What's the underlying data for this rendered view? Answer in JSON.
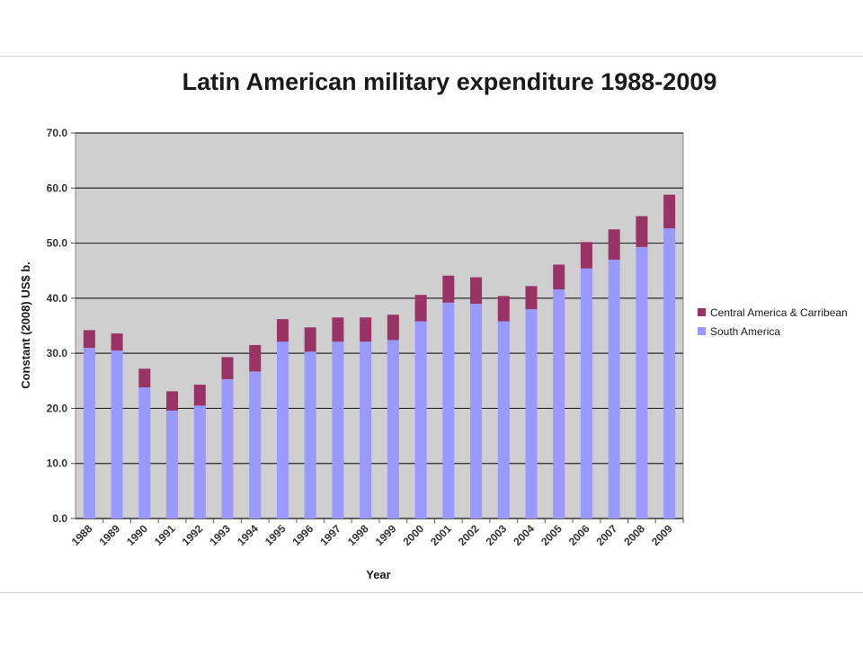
{
  "chart_data": {
    "type": "bar",
    "stacked": true,
    "title": "Latin American military expenditure 1988-2009",
    "xlabel": "Year",
    "ylabel": "Constant (2008) US$ b.",
    "ylim": [
      0,
      70
    ],
    "yticks": [
      "0.0",
      "10.0",
      "20.0",
      "30.0",
      "40.0",
      "50.0",
      "60.0",
      "70.0"
    ],
    "grid": true,
    "legend_position": "right",
    "categories": [
      "1988",
      "1989",
      "1990",
      "1991",
      "1992",
      "1993",
      "1994",
      "1995",
      "1996",
      "1997",
      "1998",
      "1999",
      "2000",
      "2001",
      "2002",
      "2003",
      "2004",
      "2005",
      "2006",
      "2007",
      "2008",
      "2009"
    ],
    "series": [
      {
        "name": "South America",
        "color": "#9999ff",
        "values": [
          31.0,
          30.5,
          23.8,
          19.6,
          20.5,
          25.3,
          26.7,
          32.1,
          30.3,
          32.1,
          32.1,
          32.4,
          35.8,
          39.2,
          39.0,
          35.8,
          38.0,
          41.6,
          45.4,
          47.0,
          49.3,
          52.7
        ]
      },
      {
        "name": "Central America & Carribean",
        "color": "#993366",
        "values": [
          3.2,
          3.1,
          3.4,
          3.5,
          3.8,
          4.0,
          4.8,
          4.1,
          4.4,
          4.4,
          4.4,
          4.6,
          4.8,
          4.9,
          4.8,
          4.6,
          4.2,
          4.5,
          4.8,
          5.5,
          5.6,
          6.1
        ]
      }
    ]
  }
}
